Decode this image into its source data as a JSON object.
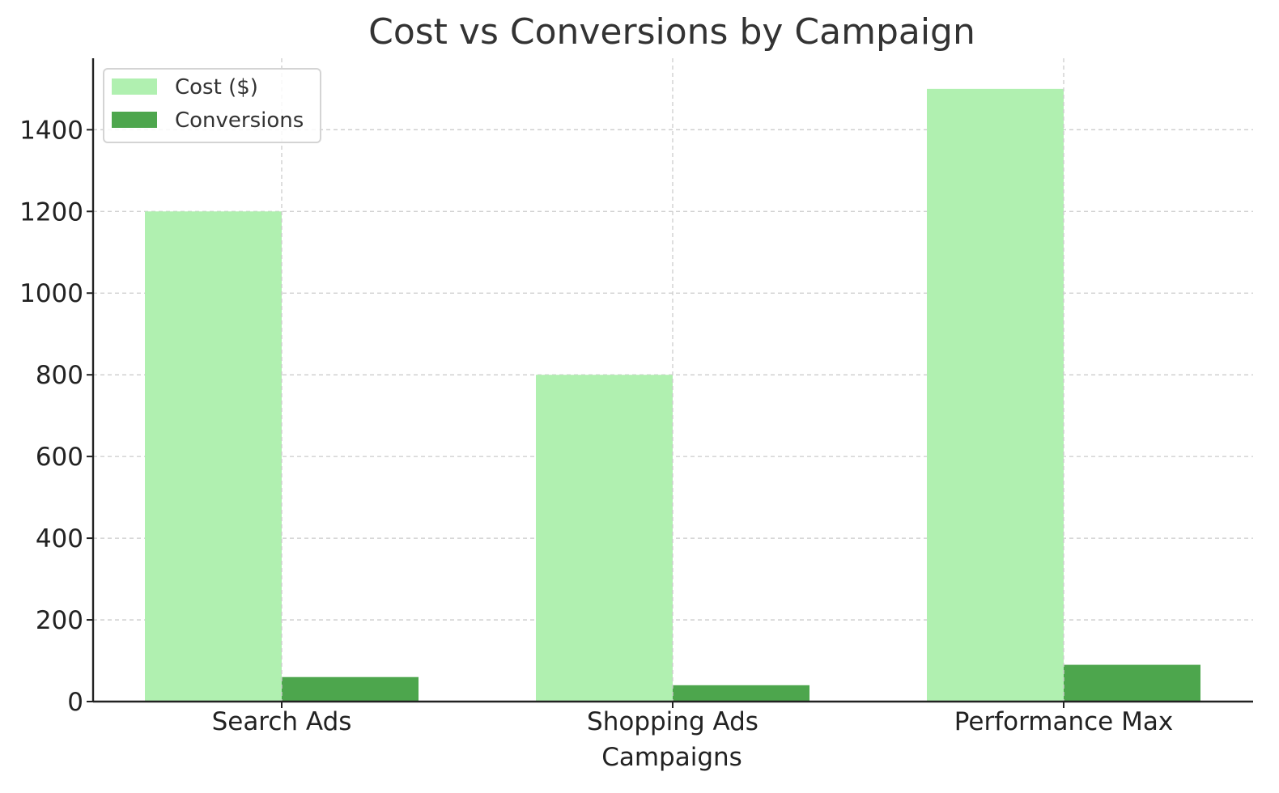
{
  "chart_data": {
    "type": "bar",
    "title": "Cost vs Conversions by Campaign",
    "xlabel": "Campaigns",
    "ylabel": "",
    "categories": [
      "Search Ads",
      "Shopping Ads",
      "Performance Max"
    ],
    "series": [
      {
        "name": "Cost ($)",
        "values": [
          1200,
          800,
          1500
        ],
        "color": "#b0f0b0"
      },
      {
        "name": "Conversions",
        "values": [
          60,
          40,
          90
        ],
        "color": "#4da64d"
      }
    ],
    "ylim": [
      0,
      1575
    ],
    "yticks": [
      0,
      200,
      400,
      600,
      800,
      1000,
      1200,
      1400
    ],
    "grid": true,
    "legend_position": "top-left"
  }
}
